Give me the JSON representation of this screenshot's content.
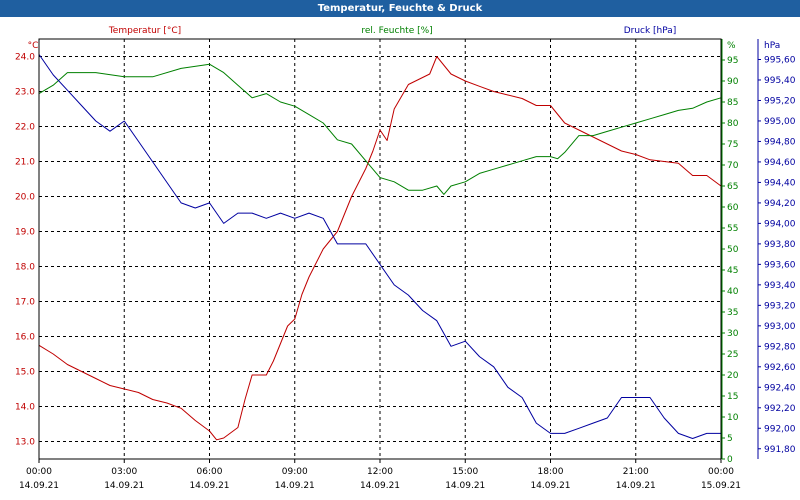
{
  "window": {
    "title": "Temperatur, Feuchte & Druck"
  },
  "colors": {
    "temperature": "#c00000",
    "humidity": "#008000",
    "pressure": "#0000a0",
    "grid": "#000000",
    "title_bar": "#1f5fa0"
  },
  "chart_data": {
    "type": "line",
    "title": "Temperatur, Feuchte & Druck",
    "grid": true,
    "x_ticks": [
      {
        "time": "00:00",
        "date": "14.09.21"
      },
      {
        "time": "03:00",
        "date": "14.09.21"
      },
      {
        "time": "06:00",
        "date": "14.09.21"
      },
      {
        "time": "09:00",
        "date": "14.09.21"
      },
      {
        "time": "12:00",
        "date": "14.09.21"
      },
      {
        "time": "15:00",
        "date": "14.09.21"
      },
      {
        "time": "18:00",
        "date": "14.09.21"
      },
      {
        "time": "21:00",
        "date": "14.09.21"
      },
      {
        "time": "00:00",
        "date": "15.09.21"
      }
    ],
    "x_range_hours": [
      0,
      24
    ],
    "axes": {
      "temperature": {
        "title": "Temperatur [°C]",
        "unit": "°C",
        "ylim": [
          12.5,
          24.5
        ],
        "ticks": [
          "13.0",
          "14.0",
          "15.0",
          "16.0",
          "17.0",
          "18.0",
          "19.0",
          "20.0",
          "21.0",
          "22.0",
          "23.0",
          "24.0"
        ]
      },
      "humidity": {
        "title": "rel. Feuchte [%]",
        "unit": "%",
        "ylim": [
          0,
          100
        ],
        "ticks": [
          "0",
          "5",
          "10",
          "15",
          "20",
          "25",
          "30",
          "35",
          "40",
          "45",
          "50",
          "55",
          "60",
          "65",
          "70",
          "75",
          "80",
          "85",
          "90",
          "95"
        ]
      },
      "pressure": {
        "title": "Druck [hPa]",
        "unit": "hPa",
        "ylim": [
          991.7,
          995.8
        ],
        "ticks": [
          "991,80",
          "992,00",
          "992,20",
          "992,40",
          "992,60",
          "992,80",
          "993,00",
          "993,20",
          "993,40",
          "993,60",
          "993,80",
          "994,00",
          "994,20",
          "994,40",
          "994,60",
          "994,80",
          "995,00",
          "995,20",
          "995,40",
          "995,60"
        ]
      }
    },
    "series": [
      {
        "name": "Temperatur [°C]",
        "axis": "temperature",
        "points": [
          [
            0,
            15.75
          ],
          [
            0.5,
            15.5
          ],
          [
            1,
            15.2
          ],
          [
            1.5,
            15.0
          ],
          [
            2,
            14.8
          ],
          [
            2.5,
            14.6
          ],
          [
            3,
            14.5
          ],
          [
            3.5,
            14.4
          ],
          [
            4,
            14.2
          ],
          [
            4.5,
            14.1
          ],
          [
            5,
            13.95
          ],
          [
            5.5,
            13.6
          ],
          [
            6,
            13.3
          ],
          [
            6.25,
            13.05
          ],
          [
            6.5,
            13.1
          ],
          [
            7,
            13.4
          ],
          [
            7.25,
            14.2
          ],
          [
            7.5,
            14.9
          ],
          [
            8,
            14.9
          ],
          [
            8.25,
            15.3
          ],
          [
            8.75,
            16.3
          ],
          [
            9,
            16.5
          ],
          [
            9.25,
            17.2
          ],
          [
            9.5,
            17.7
          ],
          [
            10,
            18.5
          ],
          [
            10.5,
            19.0
          ],
          [
            11,
            20.0
          ],
          [
            11.5,
            20.8
          ],
          [
            11.75,
            21.3
          ],
          [
            12,
            21.9
          ],
          [
            12.25,
            21.6
          ],
          [
            12.5,
            22.5
          ],
          [
            13,
            23.2
          ],
          [
            13.5,
            23.4
          ],
          [
            13.75,
            23.5
          ],
          [
            14,
            24.0
          ],
          [
            14.5,
            23.5
          ],
          [
            15,
            23.3
          ],
          [
            15.5,
            23.15
          ],
          [
            16,
            23.0
          ],
          [
            16.5,
            22.9
          ],
          [
            17,
            22.8
          ],
          [
            17.5,
            22.6
          ],
          [
            18,
            22.6
          ],
          [
            18.5,
            22.1
          ],
          [
            19,
            21.9
          ],
          [
            19.5,
            21.7
          ],
          [
            20,
            21.5
          ],
          [
            20.5,
            21.3
          ],
          [
            21,
            21.2
          ],
          [
            21.5,
            21.05
          ],
          [
            22,
            21.0
          ],
          [
            22.5,
            20.95
          ],
          [
            23,
            20.6
          ],
          [
            23.5,
            20.6
          ],
          [
            24,
            20.3
          ]
        ]
      },
      {
        "name": "rel. Feuchte [%]",
        "axis": "humidity",
        "points": [
          [
            0,
            87
          ],
          [
            0.5,
            89
          ],
          [
            1,
            92
          ],
          [
            2,
            92
          ],
          [
            3,
            91
          ],
          [
            4,
            91
          ],
          [
            5,
            93
          ],
          [
            6,
            94
          ],
          [
            6.5,
            92
          ],
          [
            7,
            89
          ],
          [
            7.5,
            86
          ],
          [
            8,
            87
          ],
          [
            8.5,
            85
          ],
          [
            9,
            84
          ],
          [
            9.5,
            82
          ],
          [
            10,
            80
          ],
          [
            10.5,
            76
          ],
          [
            11,
            75
          ],
          [
            11.5,
            71
          ],
          [
            12,
            67
          ],
          [
            12.5,
            66
          ],
          [
            13,
            64
          ],
          [
            13.5,
            64
          ],
          [
            14,
            65
          ],
          [
            14.25,
            63
          ],
          [
            14.5,
            65
          ],
          [
            15,
            66
          ],
          [
            15.5,
            68
          ],
          [
            16,
            69
          ],
          [
            16.5,
            70
          ],
          [
            17,
            71
          ],
          [
            17.5,
            72
          ],
          [
            18,
            72
          ],
          [
            18.25,
            71.5
          ],
          [
            18.5,
            73
          ],
          [
            19,
            77
          ],
          [
            19.5,
            77
          ],
          [
            20,
            78
          ],
          [
            20.5,
            79
          ],
          [
            21,
            80
          ],
          [
            21.5,
            81
          ],
          [
            22,
            82
          ],
          [
            22.5,
            83
          ],
          [
            23,
            83.5
          ],
          [
            23.5,
            85
          ],
          [
            24,
            86
          ]
        ]
      },
      {
        "name": "Druck [hPa]",
        "axis": "pressure",
        "points": [
          [
            0,
            995.65
          ],
          [
            0.5,
            995.45
          ],
          [
            1,
            995.3
          ],
          [
            1.5,
            995.15
          ],
          [
            2,
            995.0
          ],
          [
            2.5,
            994.9
          ],
          [
            3,
            995.0
          ],
          [
            3.5,
            994.8
          ],
          [
            4,
            994.6
          ],
          [
            4.5,
            994.4
          ],
          [
            5,
            994.2
          ],
          [
            5.5,
            994.15
          ],
          [
            6,
            994.2
          ],
          [
            6.5,
            994.0
          ],
          [
            7,
            994.1
          ],
          [
            7.5,
            994.1
          ],
          [
            8,
            994.05
          ],
          [
            8.5,
            994.1
          ],
          [
            9,
            994.05
          ],
          [
            9.5,
            994.1
          ],
          [
            10,
            994.05
          ],
          [
            10.5,
            993.8
          ],
          [
            11,
            993.8
          ],
          [
            11.5,
            993.8
          ],
          [
            12,
            993.6
          ],
          [
            12.5,
            993.4
          ],
          [
            13,
            993.3
          ],
          [
            13.5,
            993.15
          ],
          [
            14,
            993.05
          ],
          [
            14.5,
            992.8
          ],
          [
            15,
            992.85
          ],
          [
            15.5,
            992.7
          ],
          [
            16,
            992.6
          ],
          [
            16.5,
            992.4
          ],
          [
            17,
            992.3
          ],
          [
            17.5,
            992.05
          ],
          [
            18,
            991.95
          ],
          [
            18.5,
            991.95
          ],
          [
            19,
            992.0
          ],
          [
            19.5,
            992.05
          ],
          [
            20,
            992.1
          ],
          [
            20.5,
            992.3
          ],
          [
            21,
            992.3
          ],
          [
            21.5,
            992.3
          ],
          [
            22,
            992.1
          ],
          [
            22.5,
            991.95
          ],
          [
            23,
            991.9
          ],
          [
            23.5,
            991.95
          ],
          [
            24,
            991.95
          ]
        ]
      }
    ]
  }
}
